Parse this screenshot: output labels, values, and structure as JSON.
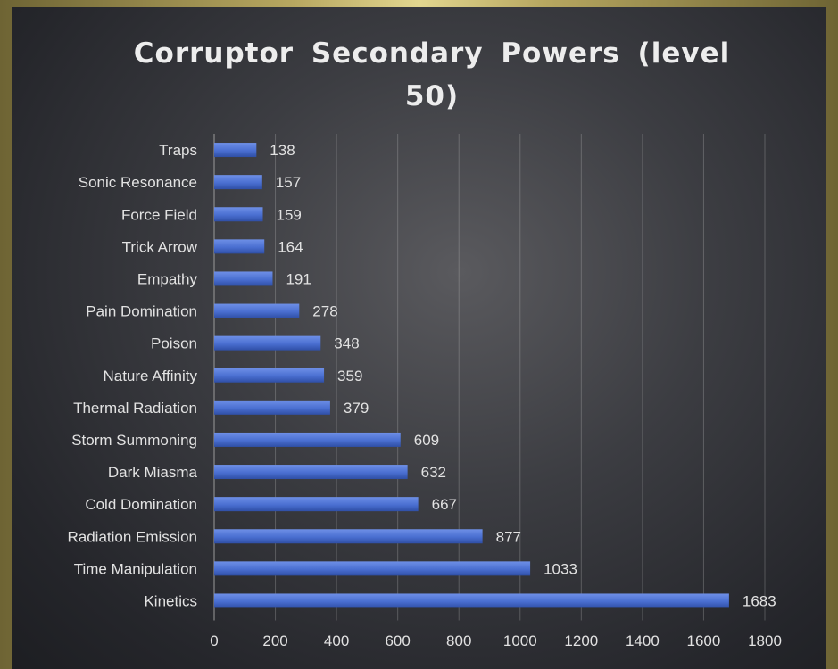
{
  "chart_data": {
    "type": "bar",
    "orientation": "horizontal",
    "title": "Corruptor Secondary Powers (level 50)",
    "categories": [
      "Traps",
      "Sonic Resonance",
      "Force Field",
      "Trick Arrow",
      "Empathy",
      "Pain Domination",
      "Poison",
      "Nature Affinity",
      "Thermal Radiation",
      "Storm Summoning",
      "Dark Miasma",
      "Cold Domination",
      "Radiation Emission",
      "Time Manipulation",
      "Kinetics"
    ],
    "values": [
      138,
      157,
      159,
      164,
      191,
      278,
      348,
      359,
      379,
      609,
      632,
      667,
      877,
      1033,
      1683
    ],
    "xlim": [
      0,
      1800
    ],
    "xticks": [
      0,
      200,
      400,
      600,
      800,
      1000,
      1200,
      1400,
      1600,
      1800
    ],
    "xlabel": "",
    "ylabel": "",
    "grid": true,
    "data_labels": true,
    "bar_color": "#4a6fd1"
  }
}
